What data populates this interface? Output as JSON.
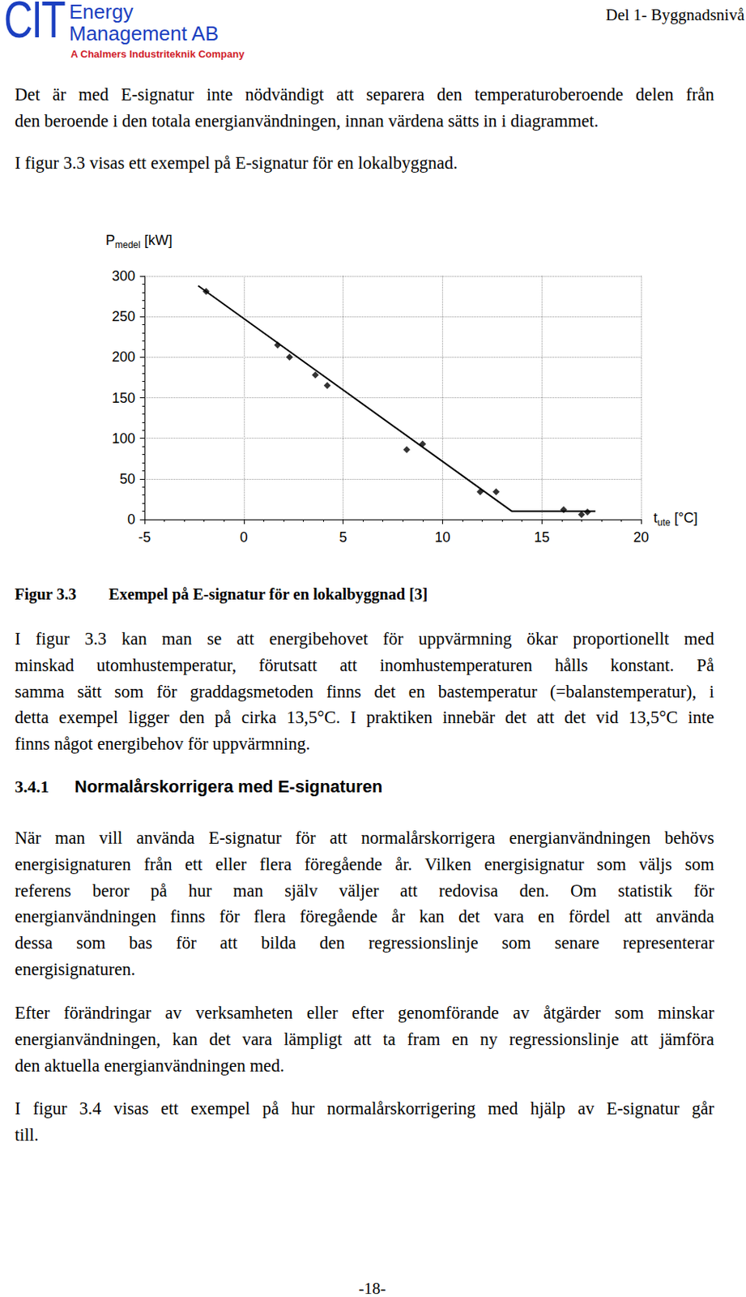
{
  "header": {
    "logo": "CIT",
    "company": [
      "Energy",
      "Management AB"
    ],
    "tagline": "A Chalmers Industriteknik Company",
    "section": "Del 1- Byggnadsnivå"
  },
  "paragraphs_before": [
    [
      "Det är med E-signatur inte nödvändigt att separera den temperaturoberoende delen från",
      "den beroende i den totala energianvändningen, innan värdena sätts in i diagrammet."
    ],
    [
      "I figur 3.3 visas ett exempel på E-signatur för en lokalbyggnad."
    ]
  ],
  "chart_data": {
    "type": "scatter",
    "ylabel": {
      "text": "P",
      "subscript": "medel",
      "unit": "[kW]"
    },
    "xlabel": {
      "text": "t",
      "subscript": "ute",
      "unit": "[°C]"
    },
    "xlim": [
      -5,
      20
    ],
    "xticks": [
      -5,
      0,
      5,
      10,
      15,
      20
    ],
    "ylim": [
      0,
      300
    ],
    "yticks": [
      0,
      50,
      100,
      150,
      200,
      250,
      300
    ],
    "grid": true,
    "series": [
      {
        "type": "scatter",
        "marker": "diamond",
        "color": "#000000",
        "x": [
          -1.9,
          1.7,
          2.3,
          3.6,
          4.2,
          8.2,
          9.0,
          11.9,
          12.7,
          16.1,
          17.0,
          17.3
        ],
        "values": [
          281,
          215,
          200,
          178,
          165,
          86,
          93,
          34,
          34,
          12,
          6,
          9
        ]
      },
      {
        "type": "line",
        "color": "#000000",
        "x": [
          -2.3,
          13.5,
          17.7
        ],
        "values": [
          288,
          10,
          10
        ]
      }
    ]
  },
  "caption": {
    "label": "Figur 3.3",
    "text": "Exempel på E-signatur för en lokalbyggnad [3]"
  },
  "paragraphs_middle": [
    [
      "I figur 3.3 kan man se att energibehovet för uppvärmning ökar proportionellt med",
      "minskad utomhustemperatur, förutsatt att inomhustemperaturen hålls konstant. På",
      "samma sätt som för graddagsmetoden finns det en bastemperatur (=balanstemperatur), i",
      "detta exempel ligger den på cirka 13,5°C. I praktiken innebär det att det vid 13,5°C inte",
      "finns något energibehov för uppvärmning."
    ]
  ],
  "heading": {
    "number": "3.4.1",
    "title": "Normalårskorrigera med E-signaturen"
  },
  "paragraphs_after": [
    [
      "När man vill använda E-signatur för att normalårskorrigera energianvändningen behövs",
      "energisignaturen från ett eller flera föregående år. Vilken energisignatur som väljs som",
      "referens beror på hur man själv väljer att redovisa den. Om statistik för",
      "energianvändningen finns för flera föregående år kan det vara en fördel att använda",
      "dessa som bas för att bilda den regressionslinje som senare representerar",
      "energisignaturen."
    ],
    [
      "Efter förändringar av verksamheten eller efter genomförande av åtgärder som minskar",
      "energianvändningen, kan det vara lämpligt att ta fram en ny regressionslinje att jämföra",
      "den aktuella energianvändningen med."
    ],
    [
      "I figur 3.4 visas ett exempel på hur normalårskorrigering med hjälp av E-signatur går",
      "till."
    ]
  ],
  "page_number": "-18-"
}
